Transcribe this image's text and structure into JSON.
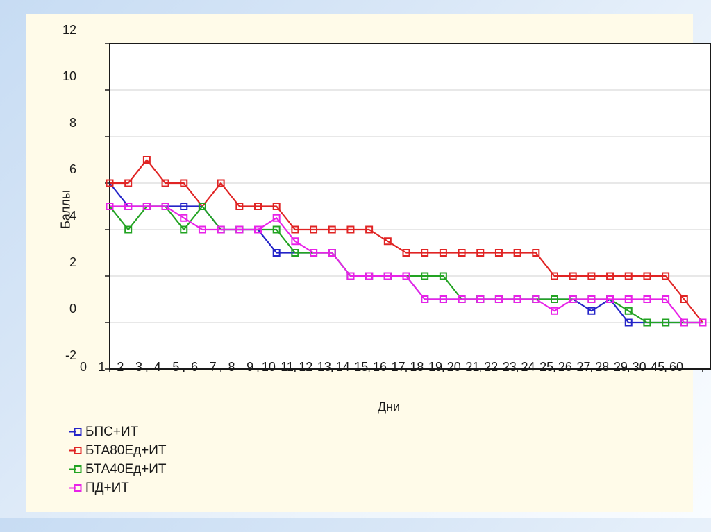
{
  "chart_data": {
    "type": "line",
    "title": "",
    "xlabel": "Дни",
    "ylabel": "Баллы",
    "categories": [
      "0",
      "1",
      "2",
      "3",
      "4",
      "5",
      "6",
      "7",
      "8",
      "9",
      "10",
      "11",
      "12",
      "13",
      "14",
      "15",
      "16",
      "17",
      "18",
      "19",
      "20",
      "21",
      "22",
      "23",
      "24",
      "25",
      "26",
      "27",
      "28",
      "29",
      "30",
      "45",
      "60"
    ],
    "yticks": [
      12,
      10,
      8,
      6,
      4,
      2,
      0,
      -2
    ],
    "ylim": [
      -2,
      12
    ],
    "grid": "horizontal",
    "legend_position": "bottom-left",
    "marker": "open-square",
    "series": [
      {
        "name": "БПС+ИТ",
        "color": "#2424c8",
        "values": [
          6,
          5,
          5,
          5,
          5,
          5,
          4,
          4,
          4,
          3,
          3,
          3,
          3,
          2,
          2,
          2,
          2,
          1,
          1,
          1,
          1,
          1,
          1,
          1,
          1,
          1,
          0.5,
          1,
          0,
          0,
          0,
          0,
          0
        ]
      },
      {
        "name": "БТА80Ед+ИТ",
        "color": "#e02424",
        "values": [
          6,
          6,
          7,
          6,
          6,
          5,
          6,
          5,
          5,
          5,
          4,
          4,
          4,
          4,
          4,
          3.5,
          3,
          3,
          3,
          3,
          3,
          3,
          3,
          3,
          2,
          2,
          2,
          2,
          2,
          2,
          2,
          1,
          0
        ]
      },
      {
        "name": "БТА40Ед+ИТ",
        "color": "#22a322",
        "values": [
          5,
          4,
          5,
          5,
          4,
          5,
          4,
          4,
          4,
          4,
          3,
          3,
          3,
          2,
          2,
          2,
          2,
          2,
          2,
          1,
          1,
          1,
          1,
          1,
          1,
          1,
          1,
          1,
          0.5,
          0,
          0,
          0,
          0
        ]
      },
      {
        "name": "ПД+ИТ",
        "color": "#e822e8",
        "values": [
          5,
          5,
          5,
          5,
          4.5,
          4,
          4,
          4,
          4,
          4.5,
          3.5,
          3,
          3,
          2,
          2,
          2,
          2,
          1,
          1,
          1,
          1,
          1,
          1,
          1,
          0.5,
          1,
          1,
          1,
          1,
          1,
          1,
          0,
          0
        ]
      }
    ]
  },
  "colors": {
    "plot_background": "#ffffff",
    "grid": "#d9d9d9",
    "axis": "#1a1a1a",
    "panel_background": "#fffbe9",
    "outer_background": "#c7dcf3"
  }
}
